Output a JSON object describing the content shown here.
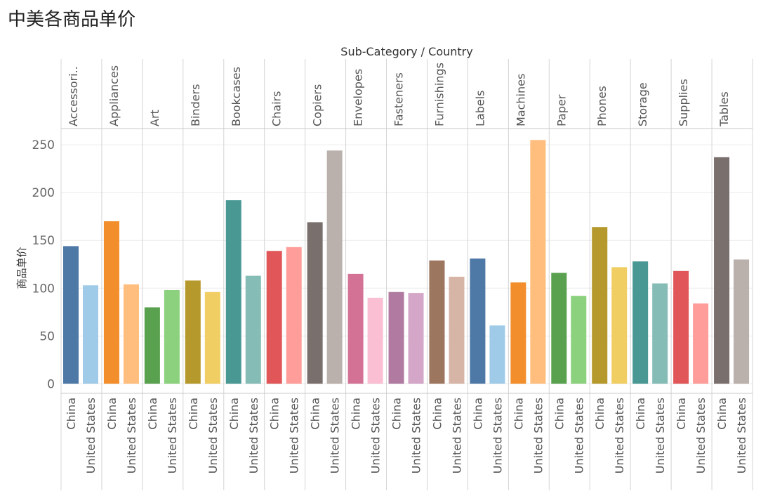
{
  "page": {
    "title": "中美各商品单价"
  },
  "chart_data": {
    "type": "bar",
    "title": "中美各商品单价",
    "column_header": "Sub-Category / Country",
    "ylabel": "商品单价",
    "ylim": [
      -10,
      267
    ],
    "yticks": [
      0,
      50,
      100,
      150,
      200,
      250
    ],
    "grid": true,
    "categories": [
      "Accessori..",
      "Appliances",
      "Art",
      "Binders",
      "Bookcases",
      "Chairs",
      "Copiers",
      "Envelopes",
      "Fasteners",
      "Furnishings",
      "Labels",
      "Machines",
      "Paper",
      "Phones",
      "Storage",
      "Supplies",
      "Tables"
    ],
    "countries": [
      "China",
      "United States"
    ],
    "series": [
      {
        "name": "China",
        "values": [
          144,
          170,
          80,
          108,
          192,
          139,
          169,
          115,
          96,
          129,
          131,
          106,
          116,
          164,
          128,
          118,
          237
        ]
      },
      {
        "name": "United States",
        "values": [
          103,
          104,
          98,
          96,
          113,
          143,
          244,
          90,
          95,
          112,
          61,
          255,
          92,
          122,
          105,
          84,
          130
        ]
      }
    ],
    "colors": {
      "China": [
        "#4e79a7",
        "#f28e2b",
        "#59a14f",
        "#b6992d",
        "#499894",
        "#e15759",
        "#79706e",
        "#d37295",
        "#b07aa1",
        "#9d7660",
        "#4e79a7",
        "#f28e2b",
        "#59a14f",
        "#b6992d",
        "#499894",
        "#e15759",
        "#79706e"
      ],
      "United States": [
        "#a0cbe8",
        "#ffbe7d",
        "#8cd17d",
        "#f1ce63",
        "#86bcb6",
        "#ff9d9a",
        "#bab0ac",
        "#fabfd2",
        "#d4a6c8",
        "#d7b5a6",
        "#a0cbe8",
        "#ffbe7d",
        "#8cd17d",
        "#f1ce63",
        "#86bcb6",
        "#ff9d9a",
        "#bab0ac"
      ]
    }
  }
}
